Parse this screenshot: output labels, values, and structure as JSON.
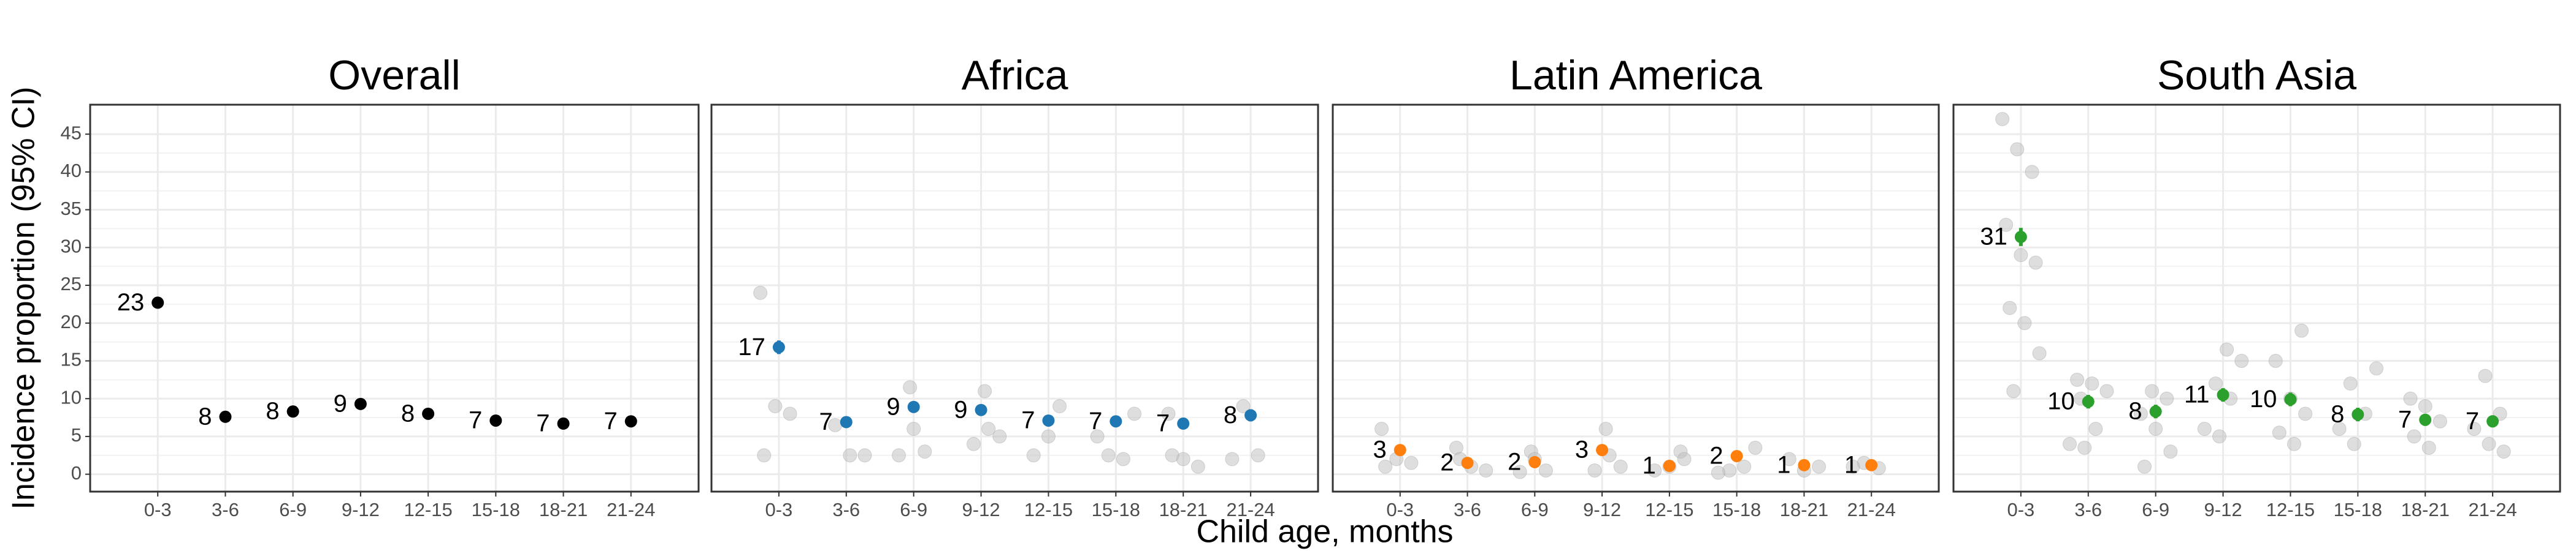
{
  "ylabel": "Incidence proportion (95% CI)",
  "xlabel": "Child age, months",
  "chart_data": [
    {
      "type": "pointrange",
      "title": "Overall",
      "color": "#000000",
      "categories": [
        "0-3",
        "3-6",
        "6-9",
        "9-12",
        "12-15",
        "15-18",
        "18-21",
        "21-24"
      ],
      "values": [
        22.7,
        7.6,
        8.3,
        9.3,
        8.0,
        7.1,
        6.7,
        7.0
      ],
      "value_labels": [
        "23",
        "8",
        "8",
        "9",
        "8",
        "7",
        "7",
        "7"
      ],
      "lower": [
        22.0,
        7.2,
        7.9,
        8.9,
        7.6,
        6.7,
        6.3,
        6.6
      ],
      "upper": [
        23.4,
        8.0,
        8.7,
        9.7,
        8.4,
        7.5,
        7.1,
        7.4
      ],
      "ylim": [
        -2.3,
        48.9
      ],
      "yticks": [
        0,
        5,
        10,
        15,
        20,
        25,
        30,
        35,
        40,
        45
      ],
      "grid": true
    },
    {
      "type": "pointrange",
      "title": "Africa",
      "color": "#1f77b4",
      "categories": [
        "0-3",
        "3-6",
        "6-9",
        "9-12",
        "12-15",
        "15-18",
        "18-21",
        "21-24"
      ],
      "values": [
        16.8,
        6.9,
        8.9,
        8.5,
        7.1,
        7.0,
        6.7,
        7.8
      ],
      "value_labels": [
        "17",
        "7",
        "9",
        "9",
        "7",
        "7",
        "7",
        "8"
      ],
      "lower": [
        15.9,
        6.2,
        8.2,
        7.8,
        6.4,
        6.3,
        6.0,
        7.0
      ],
      "upper": [
        17.7,
        7.6,
        9.6,
        9.2,
        7.8,
        7.7,
        7.4,
        8.6
      ],
      "cohort_values": [
        [
          24,
          9,
          8,
          2.5
        ],
        [
          6.5,
          2.5,
          2.5
        ],
        [
          11.5,
          3,
          2.5,
          6
        ],
        [
          11,
          5,
          4,
          6
        ],
        [
          9,
          2.5,
          5
        ],
        [
          8,
          2.5,
          2,
          5
        ],
        [
          8,
          2,
          1,
          2.5
        ],
        [
          9,
          2.5,
          2
        ]
      ],
      "ylim": [
        -2.3,
        48.9
      ],
      "yticks": [
        0,
        5,
        10,
        15,
        20,
        25,
        30,
        35,
        40,
        45
      ],
      "grid": true
    },
    {
      "type": "pointrange",
      "title": "Latin America",
      "color": "#ff7f0e",
      "categories": [
        "0-3",
        "3-6",
        "6-9",
        "9-12",
        "12-15",
        "15-18",
        "18-21",
        "21-24"
      ],
      "values": [
        3.2,
        1.5,
        1.6,
        3.2,
        1.1,
        2.4,
        1.2,
        1.2
      ],
      "value_labels": [
        "3",
        "2",
        "2",
        "3",
        "1",
        "2",
        "1",
        "1"
      ],
      "lower": [
        2.6,
        1.0,
        1.1,
        2.6,
        0.7,
        1.8,
        0.8,
        0.8
      ],
      "upper": [
        3.8,
        2.0,
        2.1,
        3.8,
        1.5,
        3.0,
        1.6,
        1.6
      ],
      "cohort_values": [
        [
          6,
          2,
          1.5,
          1
        ],
        [
          3.5,
          1,
          0.5,
          2
        ],
        [
          3,
          0.5,
          0.3,
          2
        ],
        [
          6,
          1,
          0.5,
          2.5
        ],
        [
          3,
          0.5,
          1,
          2
        ],
        [
          3.5,
          0.5,
          1,
          0.2
        ],
        [
          2,
          0.5,
          1
        ],
        [
          1.5,
          0.8,
          1
        ]
      ],
      "ylim": [
        -2.3,
        48.9
      ],
      "yticks": [
        0,
        5,
        10,
        15,
        20,
        25,
        30,
        35,
        40,
        45
      ],
      "grid": true
    },
    {
      "type": "pointrange",
      "title": "South Asia",
      "color": "#2ca02c",
      "categories": [
        "0-3",
        "3-6",
        "6-9",
        "9-12",
        "12-15",
        "15-18",
        "18-21",
        "21-24"
      ],
      "values": [
        31.4,
        9.6,
        8.3,
        10.5,
        9.9,
        7.9,
        7.2,
        7.0
      ],
      "value_labels": [
        "31",
        "10",
        "8",
        "11",
        "10",
        "8",
        "7",
        "7"
      ],
      "lower": [
        30.2,
        8.7,
        7.4,
        9.6,
        9.0,
        7.0,
        6.4,
        6.2
      ],
      "upper": [
        32.6,
        10.5,
        9.2,
        11.4,
        10.8,
        8.8,
        8.0,
        7.8
      ],
      "cohort_values": [
        [
          47,
          43,
          40,
          33,
          29,
          28,
          22,
          20,
          16,
          11
        ],
        [
          12.5,
          12,
          11,
          10,
          6,
          4,
          3.5
        ],
        [
          11,
          10,
          8,
          6,
          3,
          1
        ],
        [
          16.5,
          15,
          12,
          10,
          6,
          5
        ],
        [
          19,
          15,
          10,
          8,
          5.5,
          4
        ],
        [
          14,
          12,
          8,
          6,
          4
        ],
        [
          10,
          9,
          7,
          5,
          3.5
        ],
        [
          13,
          8,
          6,
          4,
          3
        ]
      ],
      "ylim": [
        -2.3,
        48.9
      ],
      "yticks": [
        0,
        5,
        10,
        15,
        20,
        25,
        30,
        35,
        40,
        45
      ],
      "grid": true
    }
  ]
}
